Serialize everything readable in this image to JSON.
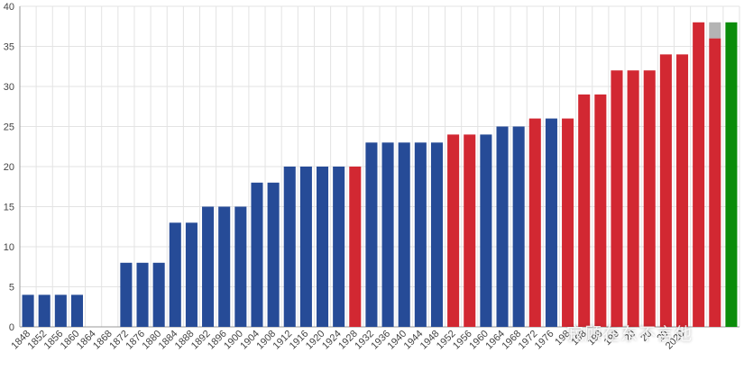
{
  "chart_data": {
    "type": "bar",
    "title": "",
    "xlabel": "",
    "ylabel": "",
    "ylim": [
      0,
      40
    ],
    "ytick_step": 5,
    "grid": true,
    "legend": "none",
    "colors": {
      "blue": "#264b97",
      "red": "#d22832",
      "gray": "#b4b4b4",
      "green": "#0a8c0a",
      "grid": "#e3e3e3",
      "axis": "#999999"
    },
    "categories": [
      "1848",
      "1852",
      "1856",
      "1860",
      "1864",
      "1868",
      "1872",
      "1876",
      "1880",
      "1884",
      "1888",
      "1892",
      "1896",
      "1900",
      "1904",
      "1908",
      "1912",
      "1916",
      "1920",
      "1924",
      "1928",
      "1932",
      "1936",
      "1940",
      "1944",
      "1948",
      "1952",
      "1956",
      "1960",
      "1964",
      "1968",
      "1972",
      "1976",
      "1980",
      "1984",
      "1988",
      "1992",
      "1996",
      "2000",
      "2004",
      "2008",
      "2012",
      "2016",
      "2020"
    ],
    "values": [
      4,
      4,
      4,
      4,
      0,
      0,
      8,
      8,
      8,
      13,
      13,
      15,
      15,
      15,
      18,
      18,
      20,
      20,
      20,
      20,
      20,
      23,
      23,
      23,
      23,
      23,
      24,
      24,
      24,
      25,
      25,
      26,
      26,
      26,
      29,
      29,
      32,
      32,
      32,
      34,
      34,
      38,
      38,
      38
    ],
    "bar_colors": [
      "blue",
      "blue",
      "blue",
      "blue",
      "blue",
      "blue",
      "blue",
      "blue",
      "blue",
      "blue",
      "blue",
      "blue",
      "blue",
      "blue",
      "blue",
      "blue",
      "blue",
      "blue",
      "blue",
      "blue",
      "red",
      "blue",
      "blue",
      "blue",
      "blue",
      "blue",
      "red",
      "red",
      "blue",
      "blue",
      "blue",
      "red",
      "blue",
      "red",
      "red",
      "red",
      "red",
      "red",
      "red",
      "red",
      "red",
      "red",
      "red",
      "green"
    ],
    "stacks": [
      {
        "category": "2016",
        "segments": [
          {
            "value": 36,
            "color": "red"
          },
          {
            "value": 2,
            "color": "gray"
          }
        ]
      }
    ],
    "visible_xticks": [
      "1848",
      "1852",
      "1856",
      "1860",
      "1864",
      "1868",
      "1872",
      "1876",
      "1880",
      "1884",
      "1888",
      "1892",
      "1896",
      "1900",
      "1904",
      "1908",
      "1912",
      "1916",
      "1920",
      "1924",
      "1928",
      "1932",
      "1936",
      "1940",
      "1944",
      "1948",
      "1952",
      "1956",
      "1960",
      "1964",
      "1968",
      "1972",
      "1976",
      "198",
      "198",
      "199",
      "199",
      "20",
      "20",
      "20",
      "2020"
    ]
  },
  "watermark": "寂顾在东不言他"
}
